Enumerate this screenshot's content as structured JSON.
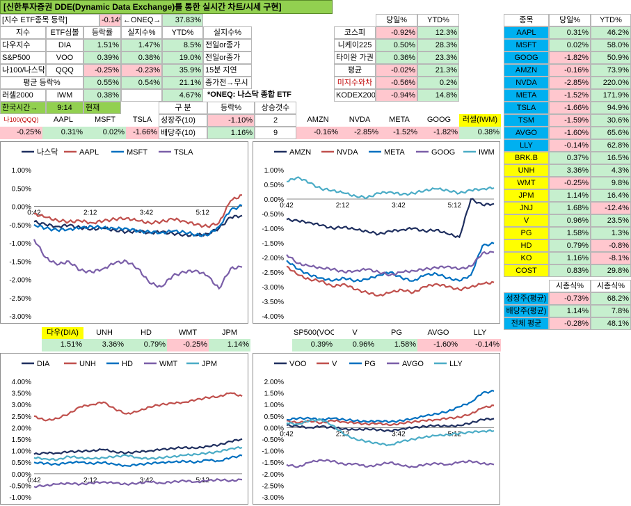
{
  "title": "[신한투자증권 DDE(Dynamic Data Exchange)를 통한 실시간 차트/시세 구현]",
  "etf": {
    "hdr_left": "[지수 ETF종목 등락]",
    "hdr_pct": "-0.14%",
    "hdr_oneq": "←ONEQ→",
    "hdr_pct2": "37.83%",
    "cols": [
      "지수",
      "ETF심볼",
      "등락률",
      "실지수%",
      "YTD%",
      "실지수%"
    ],
    "rows": [
      [
        "다우지수",
        "DIA",
        "1.51%",
        "1.47%",
        "8.5%",
        "전일or종가"
      ],
      [
        "S&P500",
        "VOO",
        "0.39%",
        "0.38%",
        "19.0%",
        "전일or종가"
      ],
      [
        "나100/나스닥",
        "QQQ",
        "-0.25%",
        "-0.23%",
        "35.9%",
        "15분 지연"
      ]
    ],
    "avg": [
      "평균 등락%",
      "0.55%",
      "0.54%",
      "21.1%",
      "종가전→무시"
    ],
    "r2000": [
      "러셀2000",
      "IWM",
      "0.38%",
      "",
      "4.67%",
      "*ONEQ: 나스닥 종합 ETF"
    ]
  },
  "kor": {
    "label": "한국시간→",
    "time": "9:14",
    "now": "현재"
  },
  "growth": {
    "h1": "구 분",
    "h2": "등락%",
    "h3": "상승갯수",
    "r1": [
      "성장주(10)",
      "-1.10%",
      "2"
    ],
    "r2": [
      "배당주(10)",
      "1.16%",
      "9"
    ]
  },
  "row1": {
    "labels": [
      "나100(QQQ)",
      "AAPL",
      "MSFT",
      "TSLA"
    ],
    "values": [
      "-0.25%",
      "0.31%",
      "0.02%",
      "-1.66%"
    ]
  },
  "row2": {
    "labels": [
      "AMZN",
      "NVDA",
      "META",
      "GOOG",
      "러셀(IWM)"
    ],
    "values": [
      "-0.16%",
      "-2.85%",
      "-1.52%",
      "-1.82%",
      "0.38%"
    ]
  },
  "world": {
    "hdr": [
      "당일%",
      "YTD%"
    ],
    "rows": [
      [
        "코스피",
        "-0.92%",
        "12.3%"
      ],
      [
        "니케이225",
        "0.50%",
        "28.3%"
      ],
      [
        "타이완 가권",
        "0.36%",
        "23.3%"
      ],
      [
        "평균",
        "-0.02%",
        "21.3%"
      ],
      [
        "미지수와차",
        "-0.56%",
        "0.2%"
      ],
      [
        "KODEX200",
        "-0.94%",
        "14.8%"
      ]
    ]
  },
  "stocks": {
    "hdr": [
      "종목",
      "당일%",
      "YTD%"
    ],
    "rows": [
      [
        "AAPL",
        "0.31%",
        "46.2%"
      ],
      [
        "MSFT",
        "0.02%",
        "58.0%"
      ],
      [
        "GOOG",
        "-1.82%",
        "50.9%"
      ],
      [
        "AMZN",
        "-0.16%",
        "73.9%"
      ],
      [
        "NVDA",
        "-2.85%",
        "220.0%"
      ],
      [
        "META",
        "-1.52%",
        "171.9%"
      ],
      [
        "TSLA",
        "-1.66%",
        "94.9%"
      ],
      [
        "TSM",
        "-1.59%",
        "30.6%"
      ],
      [
        "AVGO",
        "-1.60%",
        "65.6%"
      ],
      [
        "LLY",
        "-0.14%",
        "62.8%"
      ],
      [
        "BRK.B",
        "0.37%",
        "16.5%"
      ],
      [
        "UNH",
        "3.36%",
        "4.3%"
      ],
      [
        "WMT",
        "-0.25%",
        "9.8%"
      ],
      [
        "JPM",
        "1.14%",
        "16.4%"
      ],
      [
        "JNJ",
        "1.68%",
        "-12.4%"
      ],
      [
        "V",
        "0.96%",
        "23.5%"
      ],
      [
        "PG",
        "1.58%",
        "1.3%"
      ],
      [
        "HD",
        "0.79%",
        "-0.8%"
      ],
      [
        "KO",
        "1.16%",
        "-8.1%"
      ],
      [
        "COST",
        "0.83%",
        "29.8%"
      ]
    ]
  },
  "summary": {
    "hdr": [
      "시총식%",
      "시총식%"
    ],
    "rows": [
      [
        "성장주(평균)",
        "-0.73%",
        "68.2%"
      ],
      [
        "배당주(평균)",
        "1.14%",
        "7.8%"
      ],
      [
        "전체 평균",
        "-0.28%",
        "48.1%"
      ]
    ]
  },
  "row3": {
    "labels": [
      "다우(DIA)",
      "UNH",
      "HD",
      "WMT",
      "JPM"
    ],
    "values": [
      "1.51%",
      "3.36%",
      "0.79%",
      "-0.25%",
      "1.14%"
    ]
  },
  "row4": {
    "labels": [
      "SP500(VOO)",
      "V",
      "PG",
      "AVGO",
      "LLY"
    ],
    "values": [
      "0.39%",
      "0.96%",
      "1.58%",
      "-1.60%",
      "-0.14%"
    ]
  },
  "colors": {
    "navy": "#1f2f5f",
    "red": "#c0504d",
    "blue": "#0070c0",
    "purple": "#7a5ea8",
    "teal": "#4bacc6"
  },
  "chart_data": [
    {
      "type": "line",
      "legend": [
        "나스닥",
        "AAPL",
        "MSFT",
        "TSLA"
      ],
      "yticks": [
        "1.00%",
        "0.50%",
        "0.00%",
        "-0.50%",
        "-1.00%",
        "-1.50%",
        "-2.00%",
        "-2.50%",
        "-3.00%"
      ],
      "ylim": [
        -3,
        1
      ],
      "xticks": [
        "0:42",
        "2:12",
        "3:42",
        "5:12"
      ],
      "series": [
        {
          "name": "나스닥",
          "values": [
            -0.42,
            -0.5,
            -0.55,
            -0.52,
            -0.58,
            -0.62,
            -0.6,
            -0.65,
            -0.7,
            -0.68,
            -0.72,
            -0.7,
            -0.74,
            -0.78,
            -0.8,
            -0.75,
            -0.6,
            -0.3,
            -0.25
          ]
        },
        {
          "name": "AAPL",
          "values": [
            -0.2,
            -0.3,
            -0.38,
            -0.42,
            -0.4,
            -0.45,
            -0.4,
            -0.35,
            -0.32,
            -0.4,
            -0.45,
            -0.42,
            -0.35,
            -0.4,
            -0.5,
            -0.55,
            -0.45,
            0.15,
            0.31
          ]
        },
        {
          "name": "MSFT",
          "values": [
            -0.5,
            -0.6,
            -0.65,
            -0.62,
            -0.6,
            -0.55,
            -0.58,
            -0.62,
            -0.6,
            -0.68,
            -0.7,
            -0.72,
            -0.68,
            -0.7,
            -0.78,
            -0.8,
            -0.55,
            -0.1,
            0.02
          ]
        },
        {
          "name": "TSLA",
          "values": [
            -0.9,
            -1.4,
            -1.6,
            -1.5,
            -1.75,
            -1.8,
            -1.7,
            -1.55,
            -1.5,
            -1.7,
            -2.1,
            -2.2,
            -1.9,
            -1.8,
            -1.75,
            -1.9,
            -2.25,
            -1.7,
            -1.66
          ]
        }
      ]
    },
    {
      "type": "line",
      "legend": [
        "AMZN",
        "NVDA",
        "META",
        "GOOG",
        "IWM"
      ],
      "yticks": [
        "1.00%",
        "0.50%",
        "0.00%",
        "-0.50%",
        "-1.00%",
        "-1.50%",
        "-2.00%",
        "-2.50%",
        "-3.00%",
        "-3.50%",
        "-4.00%"
      ],
      "ylim": [
        -4,
        1
      ],
      "xticks": [
        "0:42",
        "2:12",
        "3:42",
        "5:12"
      ],
      "series": [
        {
          "name": "AMZN",
          "values": [
            -0.7,
            -0.75,
            -0.8,
            -0.9,
            -1.0,
            -0.95,
            -1.05,
            -1.1,
            -1.2,
            -1.1,
            -1.05,
            -1.0,
            -1.1,
            -1.05,
            -1.2,
            -1.3,
            -0.0,
            -0.2,
            -0.16
          ]
        },
        {
          "name": "NVDA",
          "values": [
            -2.3,
            -2.6,
            -2.75,
            -2.8,
            -3.0,
            -2.9,
            -3.1,
            -3.2,
            -3.3,
            -3.2,
            -3.1,
            -3.2,
            -3.0,
            -2.9,
            -3.0,
            -3.1,
            -3.0,
            -2.9,
            -2.85
          ]
        },
        {
          "name": "META",
          "values": [
            -2.1,
            -2.4,
            -2.6,
            -2.7,
            -2.8,
            -2.7,
            -2.8,
            -2.75,
            -2.6,
            -2.5,
            -2.7,
            -2.8,
            -2.6,
            -2.55,
            -2.7,
            -2.8,
            -2.6,
            -1.6,
            -1.52
          ]
        },
        {
          "name": "GOOG",
          "values": [
            -1.9,
            -2.2,
            -2.3,
            -2.35,
            -2.4,
            -2.5,
            -2.45,
            -2.4,
            -2.5,
            -2.6,
            -2.5,
            -2.45,
            -2.4,
            -2.35,
            -2.3,
            -2.4,
            -2.3,
            -1.85,
            -1.82
          ]
        },
        {
          "name": "IWM",
          "values": [
            0.6,
            0.75,
            0.55,
            0.35,
            0.3,
            0.2,
            0.1,
            0.05,
            0.2,
            0.25,
            0.15,
            0.2,
            0.3,
            0.35,
            0.3,
            0.2,
            0.3,
            0.35,
            0.38
          ]
        }
      ]
    },
    {
      "type": "line",
      "legend": [
        "DIA",
        "UNH",
        "HD",
        "WMT",
        "JPM"
      ],
      "yticks": [
        "4.00%",
        "3.50%",
        "3.00%",
        "2.50%",
        "2.00%",
        "1.50%",
        "1.00%",
        "0.50%",
        "0.00%",
        "-0.50%",
        "-1.00%"
      ],
      "ylim": [
        -1,
        4
      ],
      "xticks": [
        "0:42",
        "2:12",
        "3:42",
        "5:12"
      ],
      "series": [
        {
          "name": "DIA",
          "values": [
            0.85,
            0.9,
            0.9,
            0.95,
            0.98,
            1.0,
            1.05,
            0.95,
            0.9,
            0.95,
            1.0,
            1.05,
            1.1,
            1.15,
            1.1,
            1.2,
            1.25,
            1.4,
            1.51
          ]
        },
        {
          "name": "UNH",
          "values": [
            2.5,
            2.3,
            2.4,
            2.6,
            2.9,
            3.0,
            3.1,
            2.8,
            2.6,
            2.7,
            2.9,
            3.0,
            3.05,
            3.1,
            3.2,
            3.3,
            3.35,
            3.5,
            3.36
          ]
        },
        {
          "name": "HD",
          "values": [
            0.5,
            0.45,
            0.4,
            0.5,
            0.5,
            0.45,
            0.5,
            0.4,
            0.35,
            0.4,
            0.45,
            0.5,
            0.5,
            0.55,
            0.5,
            0.6,
            0.55,
            0.7,
            0.79
          ]
        },
        {
          "name": "WMT",
          "values": [
            -0.55,
            -0.5,
            -0.45,
            -0.4,
            -0.45,
            -0.4,
            -0.35,
            -0.4,
            -0.45,
            -0.4,
            -0.35,
            -0.4,
            -0.35,
            -0.3,
            -0.35,
            -0.3,
            -0.25,
            -0.3,
            -0.25
          ]
        },
        {
          "name": "JPM",
          "values": [
            0.7,
            0.65,
            0.6,
            0.75,
            0.7,
            0.65,
            0.7,
            0.75,
            0.8,
            0.7,
            0.65,
            0.7,
            0.75,
            0.8,
            0.85,
            0.9,
            0.95,
            1.1,
            1.14
          ]
        }
      ]
    },
    {
      "type": "line",
      "legend": [
        "VOO",
        "V",
        "PG",
        "AVGO",
        "LLY"
      ],
      "yticks": [
        "2.00%",
        "1.50%",
        "1.00%",
        "0.50%",
        "0.00%",
        "-0.50%",
        "-1.00%",
        "-1.50%",
        "-2.00%",
        "-2.50%",
        "-3.00%"
      ],
      "ylim": [
        -3,
        2
      ],
      "xticks": [
        "0:42",
        "2:12",
        "3:42",
        "5:12"
      ],
      "series": [
        {
          "name": "VOO",
          "values": [
            0.1,
            0.05,
            0.0,
            0.05,
            0.0,
            -0.05,
            -0.1,
            -0.05,
            -0.1,
            -0.15,
            -0.05,
            0.0,
            0.05,
            0.1,
            0.05,
            0.1,
            0.2,
            0.35,
            0.39
          ]
        },
        {
          "name": "V",
          "values": [
            0.3,
            0.2,
            0.3,
            0.2,
            0.3,
            0.25,
            0.2,
            0.15,
            0.2,
            0.1,
            0.2,
            0.25,
            0.3,
            0.35,
            0.4,
            0.45,
            0.6,
            0.85,
            0.96
          ]
        },
        {
          "name": "PG",
          "values": [
            0.35,
            0.4,
            0.4,
            0.35,
            0.4,
            0.35,
            0.3,
            0.25,
            0.3,
            0.25,
            0.3,
            0.4,
            0.5,
            0.6,
            0.7,
            0.9,
            1.1,
            1.5,
            1.58
          ]
        },
        {
          "name": "AVGO",
          "values": [
            -1.6,
            -1.7,
            -1.5,
            -1.4,
            -1.45,
            -1.6,
            -1.55,
            -1.7,
            -1.6,
            -1.5,
            -1.65,
            -1.7,
            -1.6,
            -1.55,
            -1.6,
            -1.5,
            -1.45,
            -1.55,
            -1.6
          ]
        },
        {
          "name": "LLY",
          "values": [
            0.2,
            0.15,
            0.3,
            0.35,
            0.1,
            -0.3,
            -0.5,
            -0.6,
            -0.7,
            -0.75,
            -0.6,
            -0.5,
            -0.4,
            -0.35,
            -0.3,
            -0.25,
            -0.2,
            -0.15,
            -0.14
          ]
        }
      ]
    }
  ]
}
